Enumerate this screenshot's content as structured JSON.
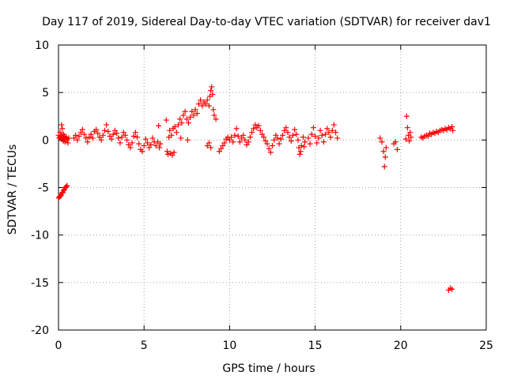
{
  "chart_data": {
    "type": "scatter",
    "title": "Day 117 of 2019, Sidereal Day-to-day VTEC variation (SDTVAR) for receiver dav1",
    "xlabel": "GPS time / hours",
    "ylabel": "SDTVAR / TECUs",
    "xlim": [
      0,
      25
    ],
    "ylim": [
      -20,
      10
    ],
    "x_ticks": [
      0,
      5,
      10,
      15,
      20,
      25
    ],
    "y_ticks": [
      -20,
      -15,
      -10,
      -5,
      0,
      5,
      10
    ],
    "x_tick_labels": [
      "0",
      "5",
      "10",
      "15",
      "20",
      "25"
    ],
    "y_tick_labels": [
      "-20",
      "-15",
      "-10",
      "-5",
      "0",
      "5",
      "10"
    ],
    "grid": true,
    "marker": "+",
    "series": [
      {
        "name": "dav1",
        "color": "#ff0000",
        "points": [
          [
            0.02,
            -6.1
          ],
          [
            0.05,
            -6.0
          ],
          [
            0.1,
            -5.9
          ],
          [
            0.15,
            -5.8
          ],
          [
            0.2,
            -5.6
          ],
          [
            0.25,
            -5.5
          ],
          [
            0.3,
            -5.3
          ],
          [
            0.35,
            -5.2
          ],
          [
            0.4,
            -5.0
          ],
          [
            0.45,
            -4.9
          ],
          [
            0.5,
            -4.8
          ],
          [
            0.0,
            0.5
          ],
          [
            0.05,
            0.2
          ],
          [
            0.08,
            0.3
          ],
          [
            0.1,
            0.8
          ],
          [
            0.12,
            0.4
          ],
          [
            0.15,
            0.1
          ],
          [
            0.18,
            1.6
          ],
          [
            0.2,
            0.5
          ],
          [
            0.22,
            1.2
          ],
          [
            0.25,
            0.3
          ],
          [
            0.28,
            -0.1
          ],
          [
            0.3,
            0.6
          ],
          [
            0.32,
            0.2
          ],
          [
            0.35,
            0.4
          ],
          [
            0.38,
            -0.2
          ],
          [
            0.4,
            0.0
          ],
          [
            0.45,
            0.3
          ],
          [
            0.5,
            0.1
          ],
          [
            0.55,
            -0.3
          ],
          [
            0.6,
            0.2
          ],
          [
            0.9,
            0.2
          ],
          [
            1.0,
            0.5
          ],
          [
            1.1,
            0.0
          ],
          [
            1.2,
            0.4
          ],
          [
            1.3,
            0.8
          ],
          [
            1.4,
            1.1
          ],
          [
            1.5,
            0.6
          ],
          [
            1.6,
            0.2
          ],
          [
            1.7,
            -0.2
          ],
          [
            1.8,
            0.3
          ],
          [
            1.9,
            0.6
          ],
          [
            2.0,
            0.2
          ],
          [
            2.1,
            0.9
          ],
          [
            2.2,
            1.1
          ],
          [
            2.3,
            0.7
          ],
          [
            2.4,
            0.3
          ],
          [
            2.5,
            0.0
          ],
          [
            2.6,
            0.5
          ],
          [
            2.7,
            1.0
          ],
          [
            2.8,
            1.6
          ],
          [
            2.9,
            0.9
          ],
          [
            3.0,
            0.4
          ],
          [
            3.1,
            0.1
          ],
          [
            3.2,
            0.6
          ],
          [
            3.3,
            1.0
          ],
          [
            3.4,
            0.7
          ],
          [
            3.5,
            0.2
          ],
          [
            3.6,
            -0.3
          ],
          [
            3.7,
            0.3
          ],
          [
            3.8,
            0.8
          ],
          [
            3.9,
            0.5
          ],
          [
            4.0,
            0.0
          ],
          [
            4.1,
            -0.5
          ],
          [
            4.2,
            -0.8
          ],
          [
            4.3,
            -0.3
          ],
          [
            4.4,
            0.4
          ],
          [
            4.5,
            0.8
          ],
          [
            4.6,
            0.3
          ],
          [
            4.7,
            -0.4
          ],
          [
            4.8,
            -1.0
          ],
          [
            4.9,
            -1.2
          ],
          [
            5.0,
            -0.6
          ],
          [
            5.1,
            0.1
          ],
          [
            5.2,
            -0.3
          ],
          [
            5.3,
            -0.8
          ],
          [
            5.4,
            -0.5
          ],
          [
            5.5,
            0.2
          ],
          [
            5.6,
            -0.2
          ],
          [
            5.7,
            -0.6
          ],
          [
            5.8,
            -0.2
          ],
          [
            5.85,
            1.5
          ],
          [
            5.9,
            -0.8
          ],
          [
            5.95,
            -0.4
          ],
          [
            6.3,
            2.1
          ],
          [
            6.35,
            -1.2
          ],
          [
            6.4,
            -1.5
          ],
          [
            6.45,
            0.3
          ],
          [
            6.5,
            1.0
          ],
          [
            6.55,
            -1.4
          ],
          [
            6.6,
            0.5
          ],
          [
            6.65,
            -1.6
          ],
          [
            6.7,
            1.2
          ],
          [
            6.75,
            -1.3
          ],
          [
            6.8,
            1.4
          ],
          [
            6.9,
            0.8
          ],
          [
            7.0,
            1.6
          ],
          [
            7.1,
            2.2
          ],
          [
            7.15,
            0.2
          ],
          [
            7.2,
            1.8
          ],
          [
            7.3,
            2.6
          ],
          [
            7.4,
            3.0
          ],
          [
            7.5,
            2.2
          ],
          [
            7.55,
            0.0
          ],
          [
            7.6,
            1.8
          ],
          [
            7.7,
            2.4
          ],
          [
            7.8,
            3.0
          ],
          [
            7.9,
            2.6
          ],
          [
            8.0,
            3.2
          ],
          [
            8.1,
            2.8
          ],
          [
            8.2,
            3.8
          ],
          [
            8.3,
            4.2
          ],
          [
            8.4,
            3.6
          ],
          [
            8.5,
            4.0
          ],
          [
            8.6,
            3.8
          ],
          [
            8.7,
            4.2
          ],
          [
            8.8,
            3.6
          ],
          [
            8.85,
            4.6
          ],
          [
            8.9,
            5.2
          ],
          [
            8.95,
            5.6
          ],
          [
            9.0,
            4.8
          ],
          [
            9.05,
            3.2
          ],
          [
            9.1,
            2.6
          ],
          [
            9.2,
            2.2
          ],
          [
            8.7,
            -0.6
          ],
          [
            8.8,
            -0.3
          ],
          [
            8.9,
            -0.8
          ],
          [
            9.4,
            -1.2
          ],
          [
            9.5,
            -0.9
          ],
          [
            9.6,
            -0.6
          ],
          [
            9.7,
            -0.3
          ],
          [
            9.8,
            0.1
          ],
          [
            9.9,
            0.3
          ],
          [
            10.0,
            0.0
          ],
          [
            10.1,
            0.3
          ],
          [
            10.2,
            -0.2
          ],
          [
            10.3,
            0.5
          ],
          [
            10.4,
            1.2
          ],
          [
            10.5,
            0.4
          ],
          [
            10.6,
            -0.2
          ],
          [
            10.7,
            0.2
          ],
          [
            10.8,
            0.5
          ],
          [
            10.9,
            0.0
          ],
          [
            11.0,
            -0.5
          ],
          [
            11.1,
            -0.2
          ],
          [
            11.2,
            0.3
          ],
          [
            11.3,
            0.8
          ],
          [
            11.4,
            1.2
          ],
          [
            11.5,
            1.6
          ],
          [
            11.6,
            1.3
          ],
          [
            11.7,
            1.5
          ],
          [
            11.8,
            1.0
          ],
          [
            11.9,
            0.6
          ],
          [
            12.0,
            0.3
          ],
          [
            12.1,
            -0.1
          ],
          [
            12.2,
            -0.4
          ],
          [
            12.3,
            -0.9
          ],
          [
            12.4,
            -1.3
          ],
          [
            12.5,
            -0.6
          ],
          [
            12.6,
            0.0
          ],
          [
            12.7,
            0.5
          ],
          [
            12.8,
            0.2
          ],
          [
            12.9,
            -0.4
          ],
          [
            13.0,
            0.1
          ],
          [
            13.1,
            0.5
          ],
          [
            13.2,
            1.0
          ],
          [
            13.3,
            1.3
          ],
          [
            13.4,
            0.8
          ],
          [
            13.5,
            0.3
          ],
          [
            13.6,
            -0.1
          ],
          [
            13.7,
            0.5
          ],
          [
            13.8,
            1.1
          ],
          [
            13.9,
            0.6
          ],
          [
            14.0,
            0.0
          ],
          [
            14.05,
            -0.8
          ],
          [
            14.1,
            -1.5
          ],
          [
            14.15,
            -1.2
          ],
          [
            14.2,
            -0.6
          ],
          [
            14.3,
            0.3
          ],
          [
            14.35,
            -0.7
          ],
          [
            14.4,
            -0.2
          ],
          [
            14.6,
            0.2
          ],
          [
            14.7,
            -0.4
          ],
          [
            14.8,
            0.6
          ],
          [
            14.9,
            1.3
          ],
          [
            15.0,
            0.4
          ],
          [
            15.1,
            -0.3
          ],
          [
            15.2,
            0.2
          ],
          [
            15.3,
            1.0
          ],
          [
            15.4,
            0.5
          ],
          [
            15.5,
            -0.2
          ],
          [
            15.6,
            0.6
          ],
          [
            15.7,
            1.2
          ],
          [
            15.8,
            0.8
          ],
          [
            15.9,
            0.3
          ],
          [
            16.0,
            1.0
          ],
          [
            16.1,
            1.6
          ],
          [
            16.2,
            0.8
          ],
          [
            16.3,
            0.2
          ],
          [
            18.8,
            0.2
          ],
          [
            18.9,
            -0.2
          ],
          [
            19.0,
            -1.2
          ],
          [
            19.05,
            -2.8
          ],
          [
            19.1,
            -1.8
          ],
          [
            19.15,
            -0.8
          ],
          [
            19.6,
            -0.4
          ],
          [
            19.7,
            -0.2
          ],
          [
            19.8,
            -1.0
          ],
          [
            20.3,
            0.1
          ],
          [
            20.35,
            2.5
          ],
          [
            20.4,
            1.3
          ],
          [
            20.45,
            0.5
          ],
          [
            20.5,
            -0.1
          ],
          [
            20.55,
            0.8
          ],
          [
            20.6,
            0.3
          ],
          [
            21.2,
            0.3
          ],
          [
            21.3,
            0.2
          ],
          [
            21.4,
            0.4
          ],
          [
            21.5,
            0.5
          ],
          [
            21.6,
            0.4
          ],
          [
            21.7,
            0.7
          ],
          [
            21.8,
            0.6
          ],
          [
            21.9,
            0.8
          ],
          [
            22.0,
            0.7
          ],
          [
            22.1,
            0.9
          ],
          [
            22.2,
            0.8
          ],
          [
            22.3,
            1.0
          ],
          [
            22.4,
            1.1
          ],
          [
            22.5,
            1.0
          ],
          [
            22.6,
            1.2
          ],
          [
            22.7,
            1.1
          ],
          [
            22.8,
            1.3
          ],
          [
            22.9,
            1.2
          ],
          [
            23.0,
            1.4
          ],
          [
            23.05,
            1.0
          ],
          [
            22.8,
            -15.8
          ],
          [
            22.9,
            -15.6
          ],
          [
            23.0,
            -15.7
          ]
        ]
      }
    ]
  }
}
